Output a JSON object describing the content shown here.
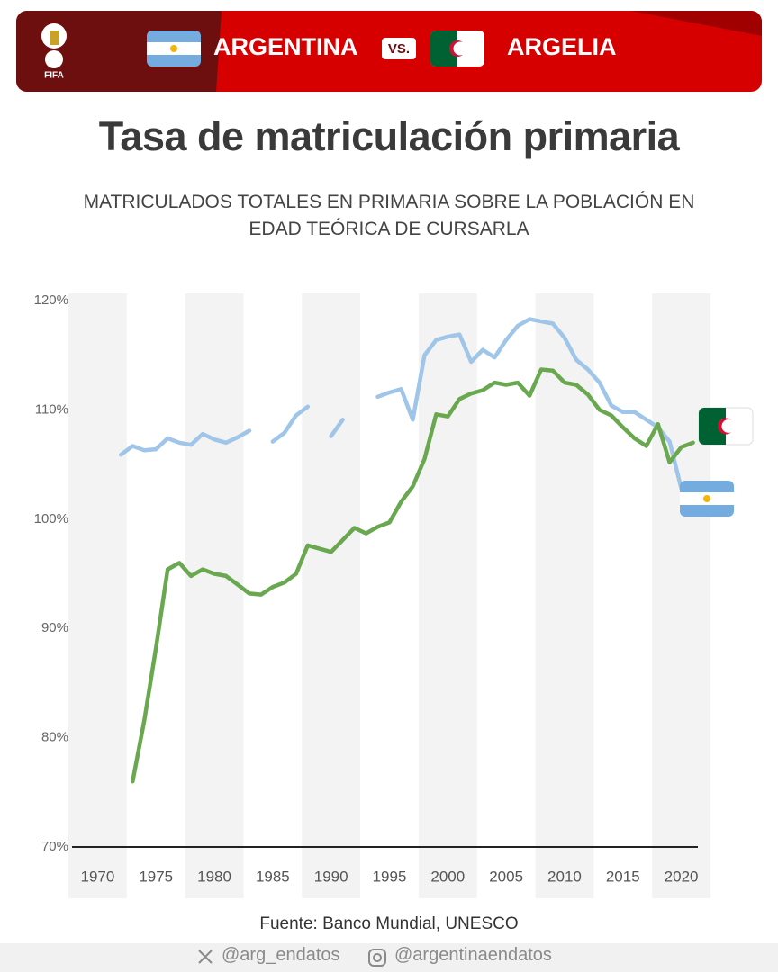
{
  "header": {
    "logo_text": "FIFA",
    "team1": "ARGENTINA",
    "vs": "VS.",
    "team2": "ARGELIA"
  },
  "chart_data": {
    "type": "line",
    "title": "Tasa de matriculación primaria",
    "subtitle": "MATRICULADOS TOTALES EN PRIMARIA SOBRE LA POBLACIÓN EN EDAD TEÓRICA DE CURSARLA",
    "source": "Fuente: Banco Mundial, UNESCO",
    "x": [
      1972,
      1973,
      1974,
      1975,
      1976,
      1977,
      1978,
      1979,
      1980,
      1981,
      1982,
      1983,
      1984,
      1985,
      1986,
      1987,
      1988,
      1989,
      1990,
      1991,
      1992,
      1993,
      1994,
      1995,
      1996,
      1997,
      1998,
      1999,
      2000,
      2001,
      2002,
      2003,
      2004,
      2005,
      2006,
      2007,
      2008,
      2009,
      2010,
      2011,
      2012,
      2013,
      2014,
      2015,
      2016,
      2017,
      2018,
      2019,
      2020,
      2021
    ],
    "series": [
      {
        "name": "Argentina",
        "color": "#9fc5e8",
        "values": [
          105.9,
          106.7,
          106.3,
          106.4,
          107.4,
          107.0,
          106.8,
          107.8,
          107.3,
          107.0,
          107.5,
          108.1,
          null,
          107.1,
          107.9,
          109.5,
          110.3,
          null,
          107.6,
          109.1,
          null,
          null,
          111.2,
          111.6,
          111.9,
          109.1,
          115.0,
          116.4,
          116.7,
          116.9,
          114.4,
          115.5,
          114.8,
          116.4,
          117.7,
          118.3,
          118.1,
          117.9,
          116.6,
          114.6,
          113.7,
          112.5,
          110.4,
          109.8,
          109.8,
          109.1,
          108.4,
          107.1,
          102.8,
          null
        ]
      },
      {
        "name": "Argelia",
        "color": "#6aa84f",
        "values": [
          null,
          76.0,
          81.6,
          88.2,
          95.4,
          96.0,
          94.8,
          95.4,
          95.0,
          94.8,
          94.0,
          93.2,
          93.1,
          93.8,
          94.2,
          95.0,
          97.6,
          97.3,
          97.0,
          98.1,
          99.2,
          98.7,
          99.3,
          99.7,
          101.6,
          103.0,
          105.5,
          109.6,
          109.4,
          111.0,
          111.5,
          111.8,
          112.5,
          112.3,
          112.5,
          111.3,
          113.7,
          113.6,
          112.5,
          112.3,
          111.4,
          110.0,
          109.5,
          108.4,
          107.4,
          106.7,
          108.7,
          105.2,
          106.6,
          107.0
        ]
      }
    ],
    "xlim": [
      1967.5,
      2022.5
    ],
    "xticks": [
      1970,
      1975,
      1980,
      1985,
      1990,
      1995,
      2000,
      2005,
      2010,
      2015,
      2020
    ],
    "ylim": [
      70,
      120
    ],
    "yticks": [
      {
        "value": 70,
        "label": "70%"
      },
      {
        "value": 80,
        "label": "80%"
      },
      {
        "value": 90,
        "label": "90%"
      },
      {
        "value": 100,
        "label": "100%"
      },
      {
        "value": 110,
        "label": "110%"
      },
      {
        "value": 120,
        "label": "120%"
      }
    ],
    "grid": false
  },
  "footer": {
    "twitter": "@arg_endatos",
    "instagram": "@argentinaendatos"
  }
}
